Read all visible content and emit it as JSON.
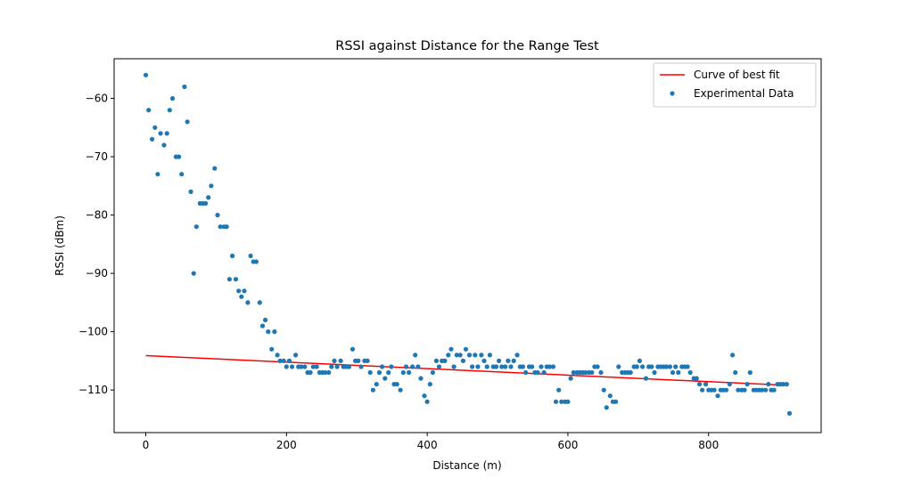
{
  "chart_data": {
    "type": "scatter",
    "title": "RSSI against Distance for the Range Test",
    "xlabel": "Distance (m)",
    "ylabel": "RSSI (dBm)",
    "xlim": [
      -45,
      960
    ],
    "ylim": [
      -117.3,
      -53.2
    ],
    "xticks": [
      0,
      200,
      400,
      600,
      800
    ],
    "yticks": [
      -60,
      -70,
      -80,
      -90,
      -100,
      -110
    ],
    "grid": false,
    "legend_position": "top-right",
    "colors": {
      "scatter": "#1f77b4",
      "fit": "#ff0000"
    },
    "series": [
      {
        "name": "Curve of best fit",
        "kind": "line",
        "x": [
          0,
          913
        ],
        "y": [
          -104.1,
          -109.2
        ]
      },
      {
        "name": "Experimental Data",
        "kind": "scatter",
        "x": [
          0,
          4,
          9,
          13,
          17,
          21,
          26,
          30,
          34,
          38,
          43,
          47,
          51,
          55,
          59,
          64,
          68,
          72,
          77,
          81,
          85,
          89,
          93,
          98,
          102,
          106,
          111,
          115,
          119,
          123,
          128,
          132,
          136,
          140,
          145,
          149,
          153,
          157,
          162,
          166,
          170,
          174,
          179,
          183,
          187,
          191,
          196,
          200,
          204,
          208,
          213,
          217,
          221,
          226,
          230,
          234,
          238,
          243,
          247,
          251,
          255,
          260,
          264,
          268,
          272,
          277,
          281,
          285,
          289,
          294,
          298,
          302,
          306,
          311,
          315,
          319,
          323,
          328,
          332,
          336,
          340,
          345,
          349,
          353,
          357,
          362,
          366,
          370,
          374,
          379,
          383,
          387,
          391,
          396,
          400,
          404,
          408,
          413,
          417,
          421,
          425,
          430,
          434,
          438,
          442,
          447,
          451,
          455,
          460,
          464,
          468,
          472,
          477,
          481,
          485,
          489,
          494,
          498,
          502,
          506,
          511,
          515,
          519,
          523,
          528,
          532,
          536,
          540,
          545,
          549,
          553,
          557,
          562,
          566,
          570,
          574,
          579,
          583,
          587,
          591,
          596,
          600,
          604,
          608,
          613,
          617,
          621,
          625,
          630,
          634,
          638,
          642,
          647,
          651,
          655,
          660,
          664,
          668,
          672,
          677,
          681,
          685,
          689,
          694,
          698,
          702,
          706,
          711,
          715,
          719,
          723,
          728,
          732,
          736,
          740,
          745,
          749,
          753,
          757,
          762,
          766,
          770,
          774,
          779,
          783,
          787,
          791,
          796,
          800,
          804,
          808,
          813,
          817,
          821,
          825,
          830,
          834,
          838,
          842,
          847,
          851,
          855,
          859,
          864,
          868,
          872,
          876,
          881,
          885,
          889,
          893,
          898,
          902,
          906,
          911,
          915
        ],
        "y": [
          -56,
          -62,
          -67,
          -65,
          -73,
          -66,
          -68,
          -66,
          -62,
          -60,
          -70,
          -70,
          -73,
          -58,
          -64,
          -76,
          -90,
          -82,
          -78,
          -78,
          -78,
          -77,
          -75,
          -72,
          -80,
          -82,
          -82,
          -82,
          -91,
          -87,
          -91,
          -93,
          -94,
          -93,
          -95,
          -87,
          -88,
          -88,
          -95,
          -99,
          -98,
          -100,
          -103,
          -100,
          -104,
          -105,
          -105,
          -106,
          -105,
          -106,
          -104,
          -106,
          -106,
          -106,
          -107,
          -107,
          -106,
          -106,
          -107,
          -107,
          -107,
          -107,
          -106,
          -105,
          -106,
          -105,
          -106,
          -106,
          -106,
          -103,
          -105,
          -105,
          -106,
          -105,
          -105,
          -107,
          -110,
          -109,
          -107,
          -106,
          -108,
          -107,
          -106,
          -109,
          -109,
          -110,
          -107,
          -106,
          -107,
          -106,
          -104,
          -106,
          -108,
          -111,
          -112,
          -109,
          -107,
          -105,
          -106,
          -105,
          -105,
          -104,
          -103,
          -106,
          -104,
          -104,
          -105,
          -103,
          -104,
          -106,
          -104,
          -106,
          -104,
          -105,
          -106,
          -104,
          -106,
          -106,
          -105,
          -106,
          -106,
          -105,
          -106,
          -105,
          -104,
          -106,
          -106,
          -107,
          -106,
          -106,
          -107,
          -107,
          -106,
          -107,
          -106,
          -106,
          -106,
          -112,
          -110,
          -112,
          -112,
          -112,
          -108,
          -107,
          -107,
          -107,
          -107,
          -107,
          -107,
          -107,
          -106,
          -106,
          -107,
          -110,
          -113,
          -111,
          -112,
          -112,
          -106,
          -107,
          -107,
          -107,
          -107,
          -106,
          -106,
          -105,
          -106,
          -108,
          -106,
          -106,
          -107,
          -106,
          -106,
          -106,
          -106,
          -106,
          -107,
          -106,
          -107,
          -106,
          -106,
          -106,
          -107,
          -108,
          -108,
          -109,
          -110,
          -109,
          -110,
          -110,
          -110,
          -111,
          -110,
          -110,
          -110,
          -109,
          -104,
          -107,
          -110,
          -110,
          -110,
          -109,
          -107,
          -110,
          -110,
          -110,
          -110,
          -110,
          -109,
          -110,
          -110,
          -109,
          -109,
          -109,
          -109,
          -114
        ]
      }
    ]
  }
}
